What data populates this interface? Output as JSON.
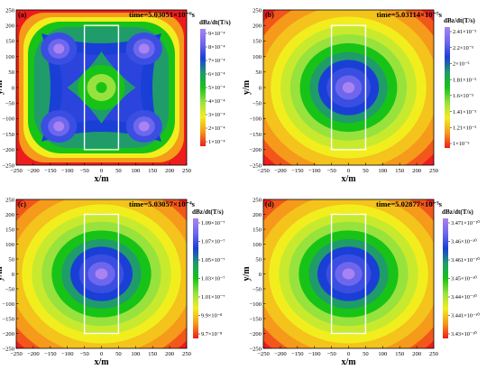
{
  "chart_data": [
    {
      "type": "heatmap",
      "panel_label": "(a)",
      "title": "time=5.03051×10⁻⁶s",
      "xlabel": "x/m",
      "ylabel": "y/m",
      "xlim": [
        -250,
        250
      ],
      "ylim": [
        -250,
        250
      ],
      "x_ticks": [
        "−250",
        "−200",
        "−150",
        "−100",
        "−50",
        "0",
        "50",
        "100",
        "150",
        "200",
        "250"
      ],
      "y_ticks": [
        "−250",
        "−200",
        "−150",
        "−100",
        "−50",
        "0",
        "50",
        "100",
        "150",
        "200",
        "250"
      ],
      "colorbar_title": "dBz/dt(T/s)",
      "colorbar_labels": [
        "9×10⁻⁴",
        "8×10⁻⁴",
        "7×10⁻⁴",
        "6×10⁻⁴",
        "5×10⁻⁴",
        "4×10⁻⁴",
        "3×10⁻⁴",
        "2×10⁻⁴",
        "1×10⁻⁴"
      ],
      "pattern": "four-lobe",
      "rectangle": {
        "x": [
          -50,
          50
        ],
        "y": [
          -200,
          200
        ]
      }
    },
    {
      "type": "heatmap",
      "panel_label": "(b)",
      "title": "time=5.03114×10⁻⁵s",
      "xlabel": "x/m",
      "ylabel": "y/m",
      "xlim": [
        -250,
        250
      ],
      "ylim": [
        -250,
        250
      ],
      "x_ticks": [
        "−250",
        "−200",
        "−150",
        "−100",
        "−50",
        "0",
        "50",
        "100",
        "150",
        "200",
        "250"
      ],
      "y_ticks": [
        "−250",
        "−200",
        "−150",
        "−100",
        "−50",
        "0",
        "50",
        "100",
        "150",
        "200",
        "250"
      ],
      "colorbar_title": "dBz/dt(T/s)",
      "colorbar_labels": [
        "2.41×10⁻⁵",
        "2.2×10⁻⁵",
        "2×10⁻⁵",
        "1.81×10⁻⁵",
        "1.6×10⁻⁵",
        "1.41×10⁻⁵",
        "1.21×10⁻⁵",
        "1×10⁻⁵"
      ],
      "pattern": "radial",
      "rectangle": {
        "x": [
          -50,
          50
        ],
        "y": [
          -200,
          200
        ]
      }
    },
    {
      "type": "heatmap",
      "panel_label": "(c)",
      "title": "time=5.03057×10⁻⁴s",
      "xlabel": "x/m",
      "ylabel": "y/m",
      "xlim": [
        -250,
        250
      ],
      "ylim": [
        -250,
        250
      ],
      "x_ticks": [
        "−250",
        "−200",
        "−150",
        "−100",
        "−50",
        "0",
        "50",
        "100",
        "150",
        "200",
        "250"
      ],
      "y_ticks": [
        "−250",
        "−200",
        "−150",
        "−100",
        "−50",
        "0",
        "50",
        "100",
        "150",
        "200",
        "250"
      ],
      "colorbar_title": "dBz/dt(T/s)",
      "colorbar_labels": [
        "1.09×10⁻⁷",
        "1.07×10⁻⁷",
        "1.05×10⁻⁷",
        "1.03×10⁻⁷",
        "1.01×10⁻⁷",
        "9.9×10⁻⁸",
        "9.7×10⁻⁸"
      ],
      "pattern": "radial",
      "rectangle": {
        "x": [
          -50,
          50
        ],
        "y": [
          -200,
          200
        ]
      }
    },
    {
      "type": "heatmap",
      "panel_label": "(d)",
      "title": "time=5.02877×10⁻³s",
      "xlabel": "x/m",
      "ylabel": "y/m",
      "xlim": [
        -250,
        250
      ],
      "ylim": [
        -250,
        250
      ],
      "x_ticks": [
        "−250",
        "−200",
        "−150",
        "−100",
        "−50",
        "0",
        "50",
        "100",
        "150",
        "200",
        "250"
      ],
      "y_ticks": [
        "−250",
        "−200",
        "−150",
        "−100",
        "−50",
        "0",
        "50",
        "100",
        "150",
        "200",
        "250"
      ],
      "colorbar_title": "dBz/dt(T/s)",
      "colorbar_labels": [
        "3.471×10⁻¹⁰",
        "3.46×10⁻¹⁰",
        "3.461×10⁻¹⁰",
        "3.45×10⁻¹⁰",
        "3.44×10⁻¹⁰",
        "3.441×10⁻¹⁰",
        "3.43×10⁻¹⁰"
      ],
      "pattern": "radial",
      "rectangle": {
        "x": [
          -50,
          50
        ],
        "y": [
          -200,
          200
        ]
      }
    }
  ],
  "colors": {
    "low": "#ee1c1c",
    "orange": "#f59a1a",
    "yellow": "#f2ee1e",
    "light_green": "#98e23e",
    "green": "#17c317",
    "teal": "#1f9c6a",
    "blue": "#1a3fd6",
    "light_blue": "#6e67ee",
    "high": "#a883f1",
    "rectangle": "#ffffff"
  }
}
